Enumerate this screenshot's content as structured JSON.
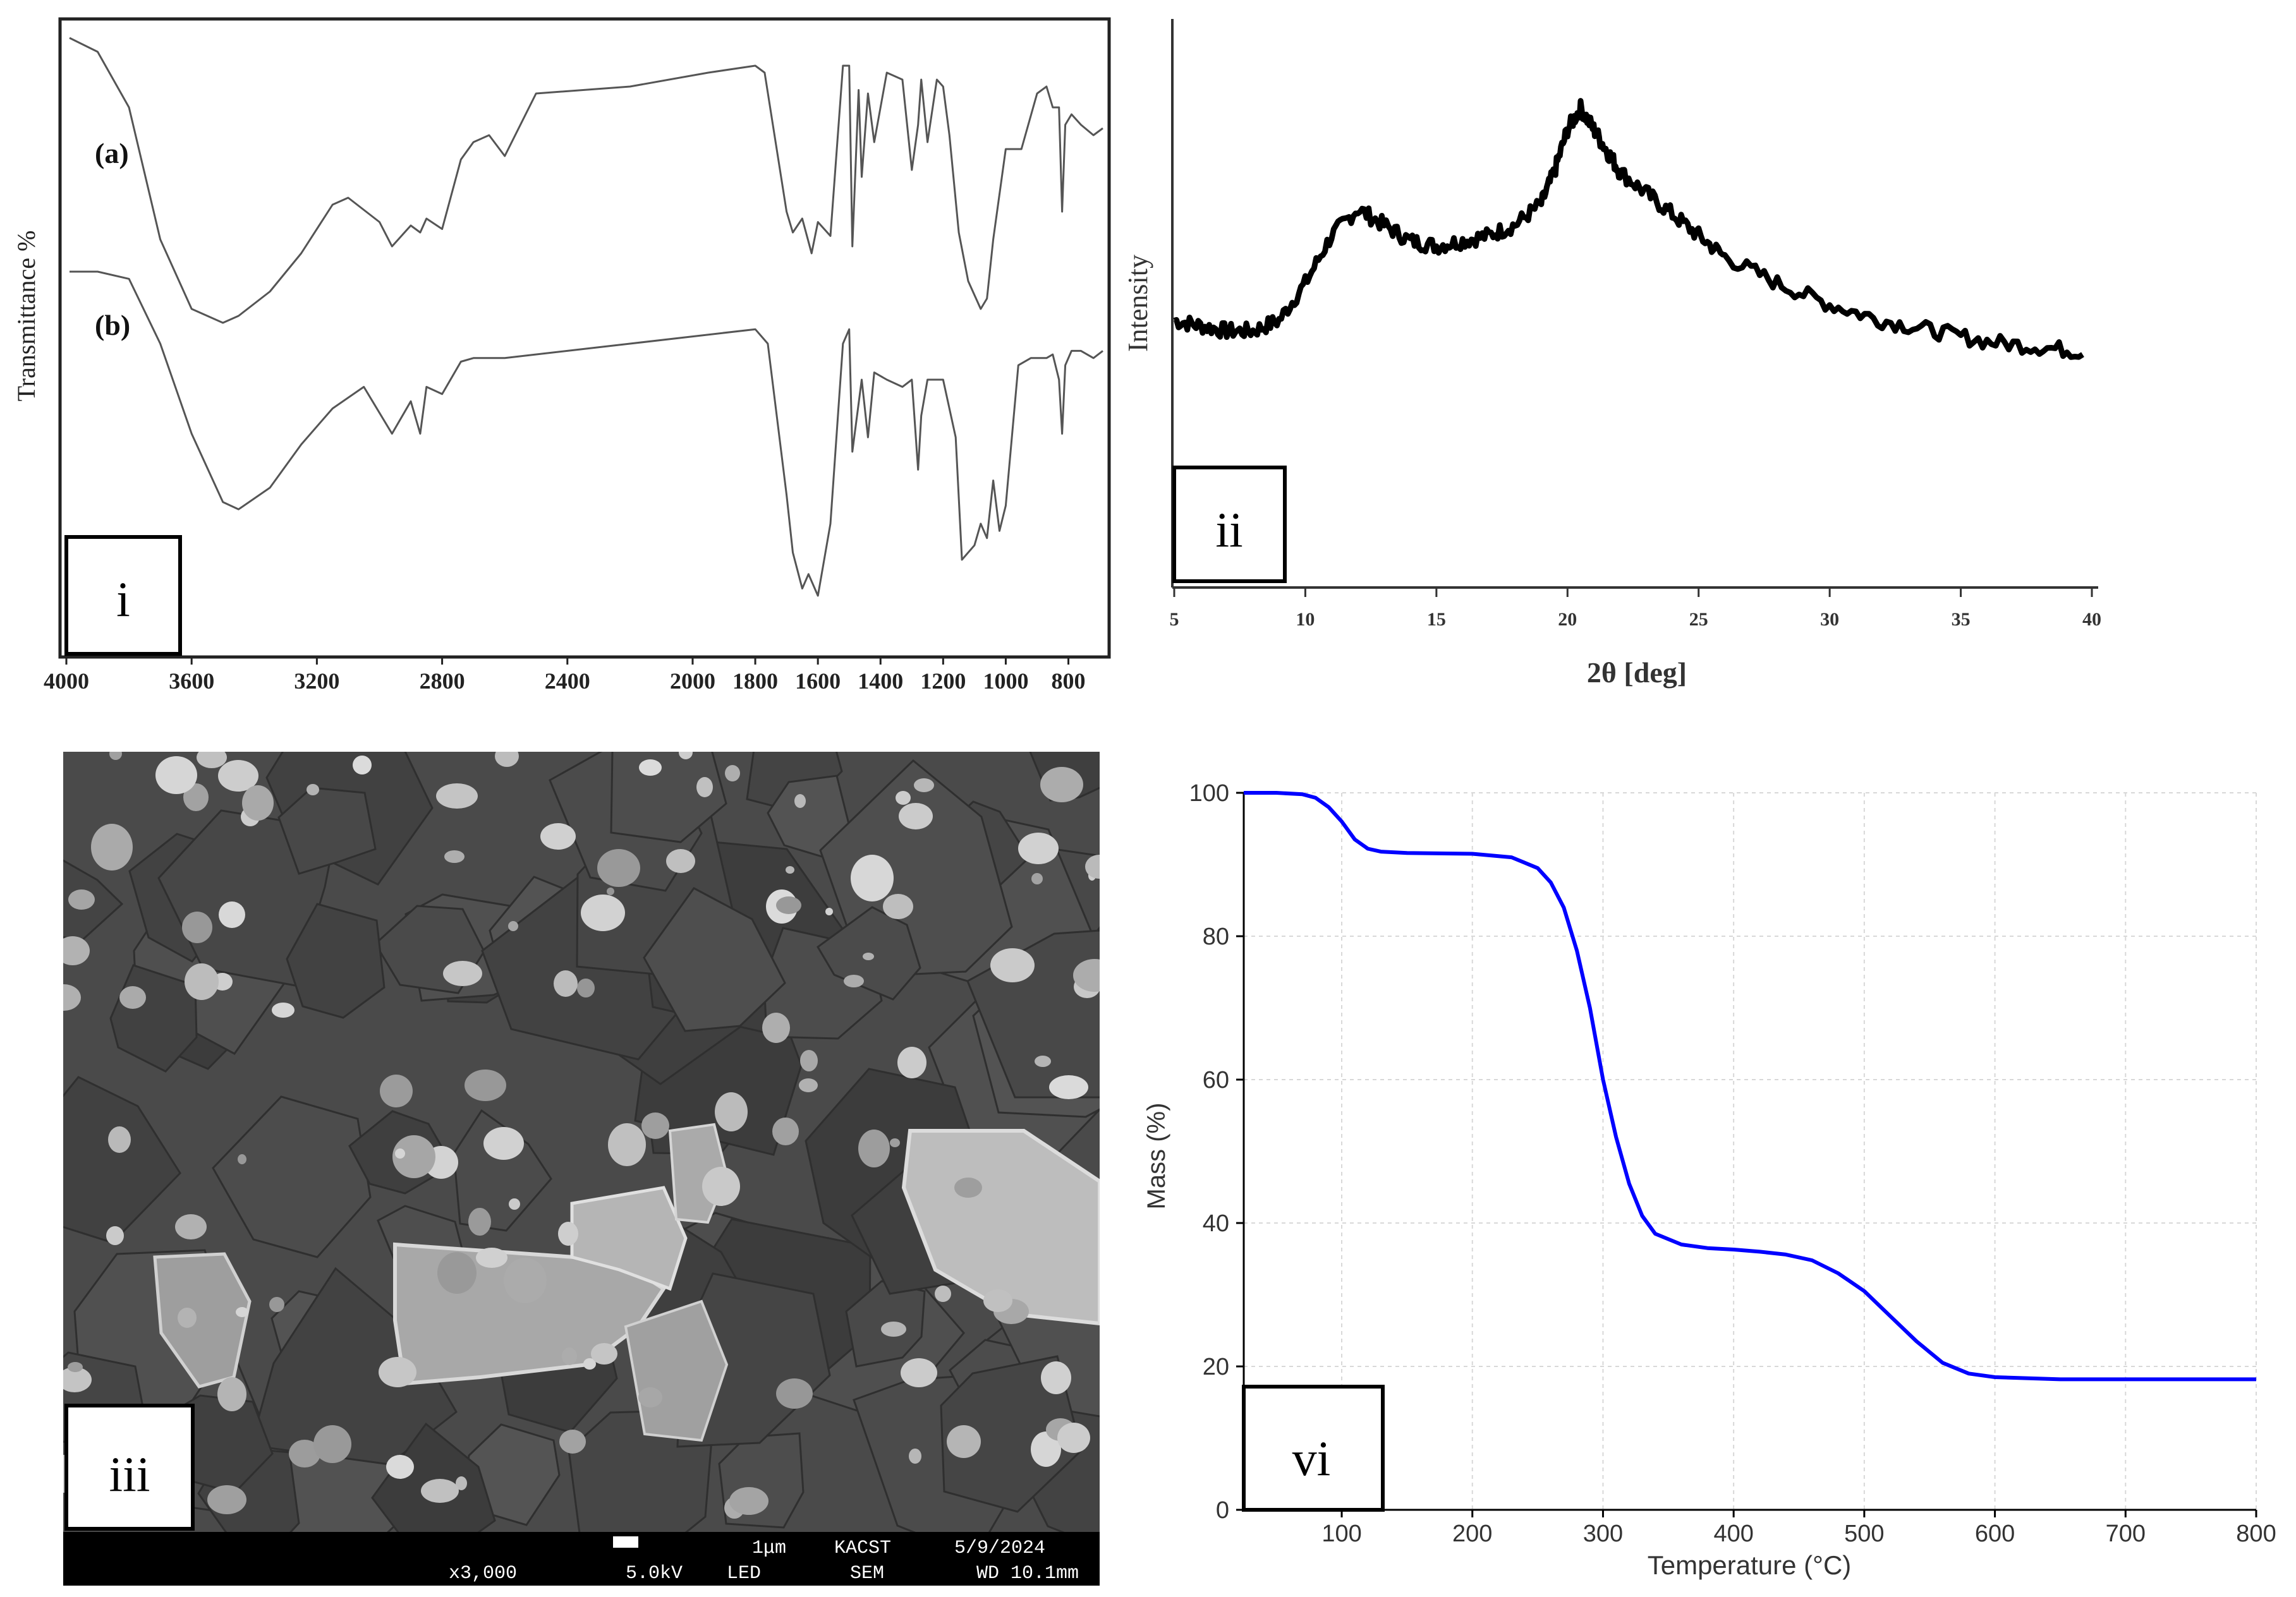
{
  "panels": {
    "i": {
      "label": "i"
    },
    "ii": {
      "label": "ii"
    },
    "iii": {
      "label": "iii"
    },
    "vi": {
      "label": "vi"
    }
  },
  "sem": {
    "magnification": "x3,000",
    "scale_bar": "1μm",
    "voltage": "5.0kV",
    "detector": "LED",
    "org": "KACST",
    "mode": "SEM",
    "date": "5/9/2024",
    "working_distance": "WD 10.1mm",
    "colors": {
      "background": "#4a4a4a",
      "particle": "#b3b3b3",
      "bar": "#000000"
    }
  },
  "chart_data": [
    {
      "type": "line",
      "panel": "i",
      "ylabel": "Transmittance %",
      "xlim": [
        4000,
        680
      ],
      "x_reversed": true,
      "xticks": [
        4000,
        3600,
        3200,
        2800,
        2400,
        2000,
        1800,
        1600,
        1400,
        1200,
        1000,
        800
      ],
      "tick_labels": [
        "4000",
        "3600",
        "3200",
        "2800",
        "2400",
        "2000",
        "1800",
        "1600",
        "1400",
        "1200",
        "1000",
        "800"
      ],
      "series": [
        {
          "name": "(a)",
          "color": "#555555",
          "x": [
            3990,
            3900,
            3800,
            3700,
            3600,
            3500,
            3450,
            3350,
            3250,
            3150,
            3100,
            3000,
            2960,
            2900,
            2870,
            2850,
            2800,
            2740,
            2700,
            2650,
            2600,
            2500,
            2200,
            1950,
            1800,
            1770,
            1700,
            1680,
            1650,
            1620,
            1600,
            1560,
            1520,
            1500,
            1490,
            1470,
            1460,
            1440,
            1420,
            1380,
            1330,
            1300,
            1280,
            1270,
            1250,
            1220,
            1200,
            1180,
            1150,
            1120,
            1080,
            1060,
            1040,
            1000,
            950,
            900,
            870,
            850,
            830,
            820,
            810,
            790,
            760,
            720,
            690
          ],
          "y": [
            100,
            96,
            80,
            42,
            22,
            18,
            20,
            27,
            38,
            52,
            54,
            47,
            40,
            46,
            44,
            48,
            45,
            65,
            70,
            72,
            66,
            84,
            86,
            90,
            92,
            90,
            50,
            44,
            48,
            38,
            47,
            43,
            92,
            92,
            40,
            85,
            60,
            84,
            70,
            90,
            88,
            62,
            75,
            88,
            70,
            88,
            86,
            72,
            44,
            30,
            22,
            25,
            42,
            68,
            68,
            84,
            86,
            80,
            80,
            50,
            75,
            78,
            75,
            72,
            74
          ]
        },
        {
          "name": "(b)",
          "color": "#555555",
          "x": [
            3990,
            3900,
            3800,
            3700,
            3600,
            3500,
            3450,
            3350,
            3250,
            3150,
            3050,
            2960,
            2900,
            2870,
            2850,
            2800,
            2740,
            2700,
            2600,
            2400,
            2200,
            2000,
            1800,
            1760,
            1700,
            1680,
            1650,
            1630,
            1600,
            1560,
            1520,
            1500,
            1490,
            1460,
            1440,
            1420,
            1380,
            1330,
            1300,
            1280,
            1270,
            1250,
            1200,
            1160,
            1140,
            1100,
            1080,
            1060,
            1040,
            1020,
            1000,
            960,
            920,
            870,
            850,
            830,
            820,
            810,
            790,
            760,
            720,
            690
          ],
          "y": [
            100,
            100,
            98,
            80,
            55,
            36,
            34,
            40,
            52,
            62,
            68,
            55,
            64,
            55,
            68,
            66,
            75,
            76,
            76,
            78,
            80,
            82,
            84,
            80,
            38,
            22,
            12,
            16,
            10,
            30,
            80,
            84,
            50,
            70,
            54,
            72,
            70,
            68,
            70,
            45,
            60,
            70,
            70,
            54,
            20,
            24,
            30,
            26,
            42,
            28,
            35,
            74,
            76,
            76,
            77,
            70,
            55,
            74,
            78,
            78,
            76,
            78
          ]
        }
      ]
    },
    {
      "type": "line",
      "panel": "ii",
      "xlabel": "2θ [deg]",
      "ylabel": "Intensity",
      "xlim": [
        5,
        40
      ],
      "xticks": [
        5,
        10,
        15,
        20,
        25,
        30,
        35,
        40
      ],
      "tick_labels": [
        "5",
        "10",
        "15",
        "20",
        "25",
        "30",
        "35",
        "40"
      ],
      "series": [
        {
          "color": "#000000",
          "x": [
            5,
            6,
            7,
            8,
            9,
            10,
            11,
            12,
            13,
            14,
            15,
            16,
            17,
            18,
            19,
            19.5,
            20,
            20.5,
            21,
            21.5,
            22,
            23,
            24,
            25,
            26,
            28,
            30,
            32,
            34,
            36,
            38,
            39.8
          ],
          "y": [
            42,
            41,
            40,
            40,
            42,
            49,
            58,
            63,
            60,
            57,
            56,
            57,
            58,
            60,
            64,
            70,
            78,
            82,
            78,
            74,
            70,
            66,
            62,
            58,
            54,
            49,
            45,
            42,
            40,
            38,
            37,
            36
          ]
        }
      ]
    },
    {
      "type": "line",
      "panel": "vi",
      "xlabel": "Temperature (°C)",
      "ylabel": "Mass (%)",
      "xlim": [
        25,
        800
      ],
      "ylim": [
        0,
        100
      ],
      "grid": true,
      "xticks": [
        100,
        200,
        300,
        400,
        500,
        600,
        700,
        800
      ],
      "tick_labels_x": [
        "100",
        "200",
        "300",
        "400",
        "500",
        "600",
        "700",
        "800"
      ],
      "yticks": [
        0,
        20,
        40,
        60,
        80,
        100
      ],
      "tick_labels_y": [
        "0",
        "20",
        "40",
        "60",
        "80",
        "100"
      ],
      "series": [
        {
          "color": "#0000ff",
          "x": [
            25,
            50,
            70,
            80,
            90,
            100,
            110,
            120,
            130,
            150,
            200,
            230,
            250,
            260,
            270,
            280,
            290,
            300,
            310,
            320,
            330,
            340,
            360,
            380,
            400,
            420,
            440,
            460,
            480,
            500,
            520,
            540,
            560,
            580,
            600,
            650,
            700,
            800
          ],
          "y": [
            100,
            100,
            99.8,
            99.3,
            98,
            96,
            93.5,
            92.2,
            91.8,
            91.6,
            91.5,
            91,
            89.5,
            87.5,
            84,
            78,
            70,
            60,
            52,
            45.5,
            41,
            38.5,
            37,
            36.5,
            36.3,
            36,
            35.6,
            34.8,
            33,
            30.5,
            27,
            23.5,
            20.5,
            19,
            18.5,
            18.2,
            18.2,
            18.2
          ]
        }
      ]
    }
  ]
}
